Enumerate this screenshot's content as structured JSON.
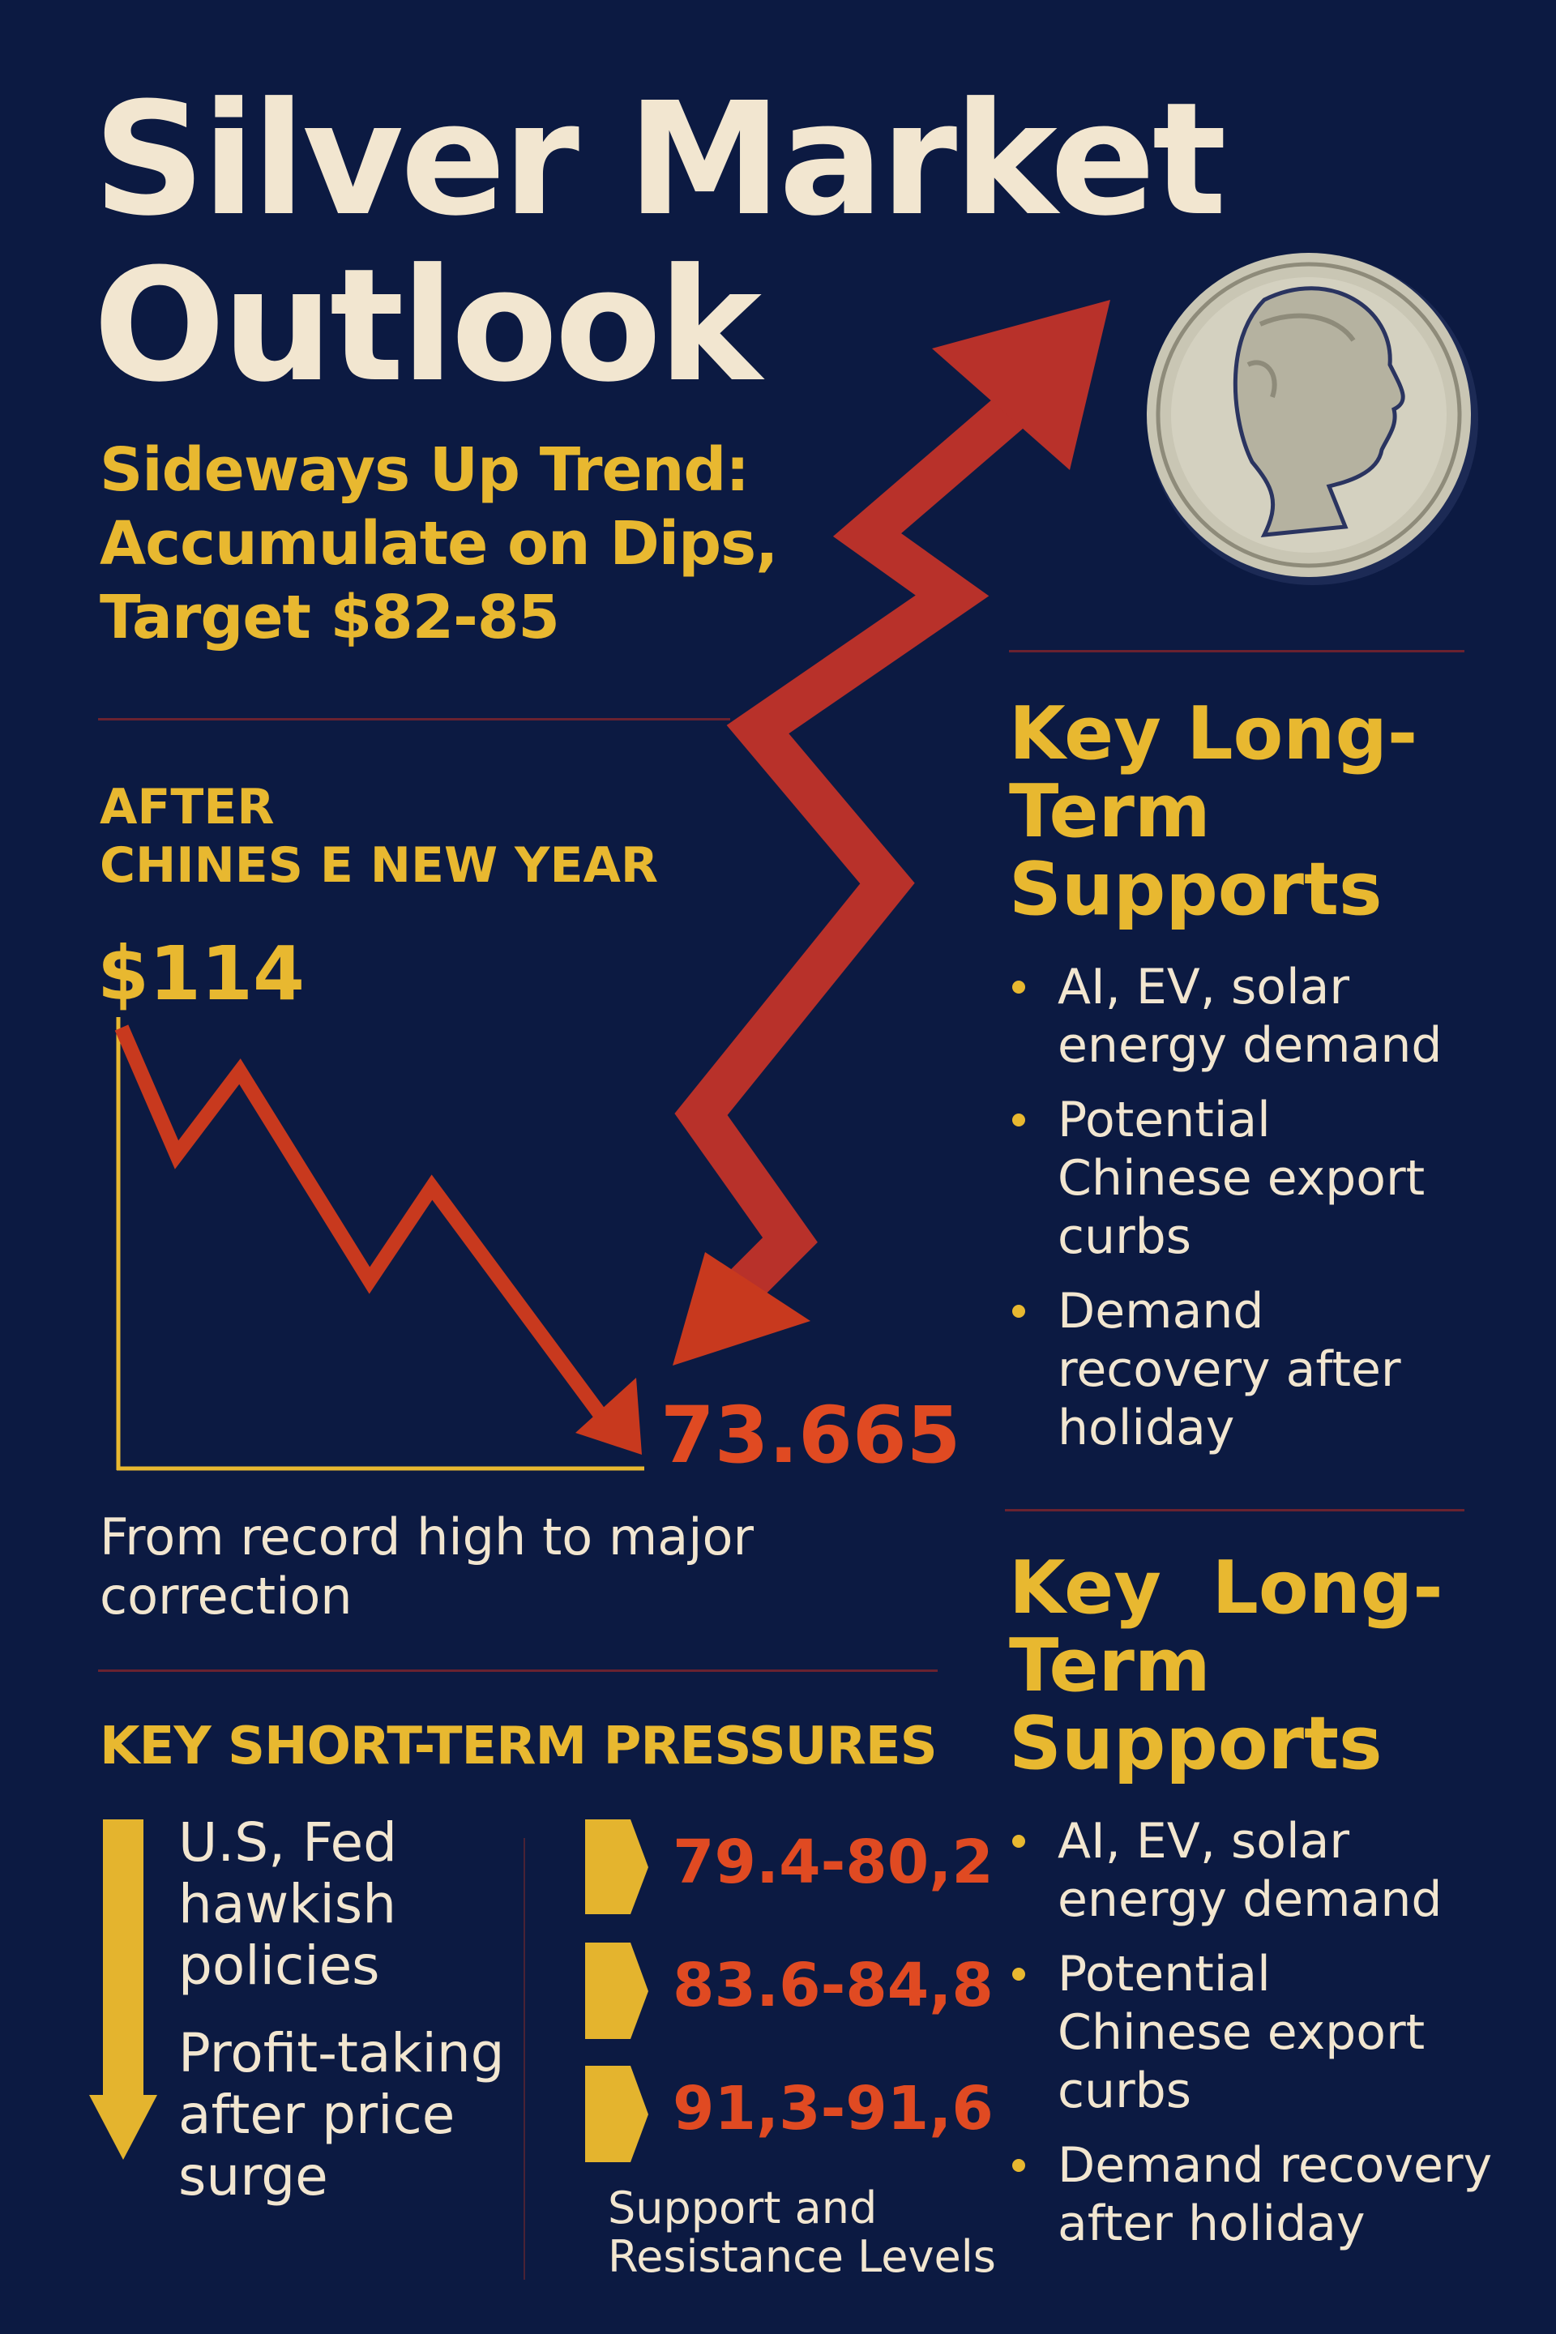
{
  "header": {
    "title_line1": "Silver Market",
    "title_line2": "Outlook",
    "subtitle_line1": "Sideways Up Trend:",
    "subtitle_line2": "Accumulate on Dips,",
    "subtitle_line3": "Target $82-85"
  },
  "correction": {
    "heading_line1": "AFTER",
    "heading_line2": "CHINES E NEW YEAR",
    "high_label": "$114",
    "low_label": "73.665",
    "caption_line1": "From record high to major",
    "caption_line2": "correction"
  },
  "short_term": {
    "heading": "KEY SHORT-TERM PRESSURES",
    "pressures": [
      {
        "lines": [
          "U.S, Fed",
          "hawkish",
          "policies"
        ]
      },
      {
        "lines": [
          "Profit-taking",
          "after price",
          "surge"
        ]
      }
    ],
    "levels": [
      "79.4-80,2",
      "83.6-84,8",
      "91,3-91,6"
    ],
    "levels_caption_line1": "Support and",
    "levels_caption_line2": "Resistance Levels"
  },
  "long_term": [
    {
      "heading_lines": [
        "Key Long-",
        "Term",
        "Supports"
      ],
      "bullets": [
        [
          "AI, EV, solar",
          "energy demand"
        ],
        [
          "Potential",
          "Chinese export",
          "curbs"
        ],
        [
          "Demand",
          "recovery after",
          "holiday"
        ]
      ]
    },
    {
      "heading_lines": [
        "Key  Long-",
        "Term",
        "Supports"
      ],
      "bullets": [
        [
          "AI, EV, solar",
          "energy demand"
        ],
        [
          "Potential",
          "Chinese export",
          "curbs"
        ],
        [
          "Demand recovery",
          "after holiday"
        ]
      ]
    }
  ],
  "colors": {
    "background": "#0c1a42",
    "accent_yellow": "#e8b830",
    "accent_red": "#e04a22",
    "arrow_red": "#b8312a",
    "text_cream": "#f2e6d0"
  },
  "icons": {
    "coin": "silver-coin-portrait-icon",
    "trend_arrow": "zigzag-arrow-icon",
    "pressure_arrow": "down-arrow-icon",
    "level_marker": "chevron-marker-icon"
  }
}
